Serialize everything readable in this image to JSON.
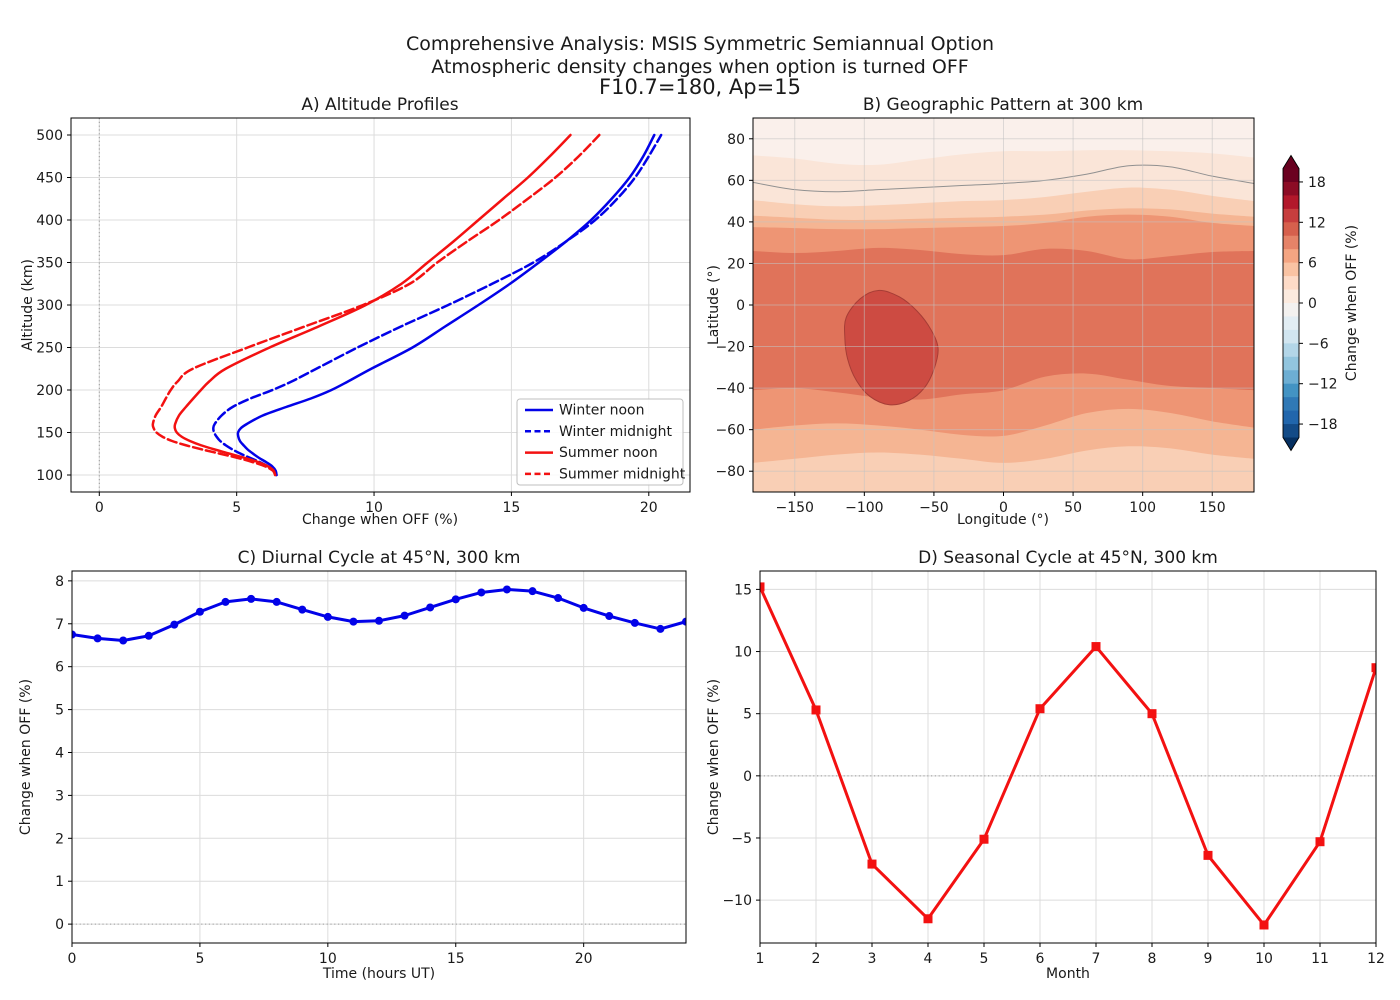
{
  "figure": {
    "suptitle_line1": "Comprehensive Analysis: MSIS Symmetric Semiannual Option",
    "suptitle_line2": "Atmospheric density changes when option is turned OFF",
    "suptitle_line3": "F10.7=180, Ap=15",
    "background": "#ffffff",
    "text_color": "#1a1a1a"
  },
  "colors": {
    "blue": "#0202e8",
    "red": "#f31111",
    "grid": "#dcdcdc",
    "grid_on_map": "#c3c3c3",
    "ref_line": "#999999",
    "spine": "#000000",
    "legend_border": "#bfbfbf"
  },
  "chart_data": [
    {
      "id": "A",
      "type": "line",
      "title": "A) Altitude Profiles",
      "xlabel": "Change when OFF (%)",
      "ylabel": "Altitude (km)",
      "xlim": [
        -1.03,
        21.5
      ],
      "ylim": [
        80,
        520
      ],
      "xticks": [
        0,
        5,
        10,
        15,
        20
      ],
      "yticks": [
        100,
        150,
        200,
        250,
        300,
        350,
        400,
        450,
        500
      ],
      "grid": true,
      "vline_x": 0,
      "legend_position": "lower right",
      "altitudes_km": [
        100,
        105,
        110,
        115,
        120,
        125,
        130,
        135,
        140,
        145,
        150,
        155,
        160,
        170,
        180,
        190,
        200,
        210,
        225,
        250,
        275,
        300,
        325,
        350,
        375,
        400,
        425,
        450,
        475,
        500
      ],
      "series": [
        {
          "name": "Winter noon",
          "color": "#0202e8",
          "style": "solid",
          "values": [
            6.45,
            6.42,
            6.3,
            6.08,
            5.82,
            5.6,
            5.4,
            5.25,
            5.12,
            5.06,
            5.05,
            5.15,
            5.37,
            5.95,
            6.8,
            7.7,
            8.45,
            9.05,
            9.9,
            11.4,
            12.6,
            13.8,
            14.95,
            16.0,
            17.0,
            17.9,
            18.65,
            19.3,
            19.8,
            20.2
          ]
        },
        {
          "name": "Winter midnight",
          "color": "#0202e8",
          "style": "dashed",
          "values": [
            6.45,
            6.38,
            6.15,
            5.85,
            5.5,
            5.15,
            4.85,
            4.6,
            4.4,
            4.27,
            4.18,
            4.15,
            4.2,
            4.45,
            4.85,
            5.5,
            6.3,
            7.0,
            7.9,
            9.4,
            11.0,
            12.7,
            14.3,
            15.8,
            17.0,
            18.05,
            18.85,
            19.5,
            20.0,
            20.45
          ]
        },
        {
          "name": "Summer noon",
          "color": "#f31111",
          "style": "solid",
          "values": [
            6.4,
            6.35,
            6.15,
            5.8,
            5.3,
            4.75,
            4.2,
            3.7,
            3.3,
            3.0,
            2.82,
            2.75,
            2.76,
            2.9,
            3.15,
            3.42,
            3.7,
            4.0,
            4.6,
            6.2,
            8.0,
            9.7,
            11.0,
            11.95,
            12.9,
            13.8,
            14.7,
            15.6,
            16.4,
            17.15
          ]
        },
        {
          "name": "Summer midnight",
          "color": "#f31111",
          "style": "dashed",
          "values": [
            6.4,
            6.32,
            6.05,
            5.6,
            5.05,
            4.4,
            3.75,
            3.15,
            2.65,
            2.3,
            2.08,
            1.98,
            1.95,
            2.05,
            2.25,
            2.42,
            2.6,
            2.85,
            3.4,
            5.4,
            7.5,
            9.6,
            11.3,
            12.3,
            13.4,
            14.55,
            15.6,
            16.6,
            17.45,
            18.2
          ]
        }
      ]
    },
    {
      "id": "B",
      "type": "contour",
      "title": "B) Geographic Pattern at 300 km",
      "xlabel": "Longitude (°)",
      "ylabel": "Latitude (°)",
      "xlim": [
        -180,
        180
      ],
      "ylim": [
        -90,
        90
      ],
      "xticks": [
        -150,
        -100,
        -50,
        0,
        50,
        100,
        150
      ],
      "yticks": [
        -80,
        -60,
        -40,
        -20,
        0,
        20,
        40,
        60,
        80
      ],
      "grid": true,
      "level_step": 2,
      "lons": [
        -180,
        -150,
        -120,
        -90,
        -60,
        -30,
        0,
        30,
        60,
        90,
        120,
        150,
        180
      ],
      "base_band": {
        "range": "0-2 %",
        "color": "#faf0eb"
      },
      "fill_steps": [
        {
          "level": 2,
          "range": "2-4 %",
          "color": "#fae5d8",
          "lats": [
            72,
            70.5,
            68,
            67.5,
            70,
            72.5,
            74,
            74,
            74.5,
            74.5,
            74,
            73,
            71
          ]
        },
        {
          "level": 4,
          "range": "4-6 %",
          "color": "#f9cfb5",
          "lats": [
            50.5,
            48.5,
            47.5,
            48,
            49,
            50,
            50.5,
            52,
            54.5,
            56.5,
            55.5,
            52.5,
            50
          ]
        },
        {
          "level": 6,
          "range": "6-8 %",
          "color": "#f5b593",
          "lats": [
            43,
            42,
            41,
            41,
            41.5,
            42,
            42.5,
            43.5,
            45.5,
            46.5,
            46,
            44,
            42.5
          ]
        },
        {
          "level": 8,
          "range": "8-10 %",
          "color": "#ee9574",
          "lats": [
            37.5,
            37,
            36.5,
            36.5,
            37,
            37.5,
            38,
            39.5,
            42.5,
            43.5,
            42.5,
            39.5,
            38
          ]
        },
        {
          "level": 10,
          "range": "10-12 %",
          "color": "#e0735a",
          "lats": [
            26,
            25,
            26,
            27.5,
            26.5,
            24.5,
            24,
            27,
            26,
            22,
            23.5,
            25.5,
            26
          ]
        },
        {
          "level": 10,
          "range": "8-10 %",
          "color": "#ee9574",
          "lats": [
            -41,
            -40,
            -42,
            -44.5,
            -45.5,
            -43,
            -41,
            -34.5,
            -33,
            -36,
            -39,
            -40,
            -41
          ]
        },
        {
          "level": 8,
          "range": "6-8 %",
          "color": "#f5b593",
          "lats": [
            -60,
            -58,
            -57,
            -58,
            -60,
            -62.5,
            -63,
            -58,
            -52,
            -50,
            -52,
            -56,
            -59
          ]
        },
        {
          "level": 6,
          "range": "4-6 %",
          "color": "#f9cfb5",
          "lats": [
            -76,
            -74,
            -72,
            -71,
            -72,
            -74,
            -76,
            -74,
            -70,
            -68,
            -69,
            -72,
            -74
          ]
        }
      ],
      "blob": {
        "range": "12-14 %",
        "color": "#cd4b42",
        "edge_color": "#a63d36",
        "center": [
          -80,
          -20
        ],
        "points": [
          [
            -113,
            -6
          ],
          [
            -103,
            3
          ],
          [
            -90,
            7
          ],
          [
            -75,
            4
          ],
          [
            -62,
            -3
          ],
          [
            -52,
            -12
          ],
          [
            -47,
            -21
          ],
          [
            -50,
            -31
          ],
          [
            -57,
            -40
          ],
          [
            -68,
            -46
          ],
          [
            -82,
            -48
          ],
          [
            -96,
            -44
          ],
          [
            -106,
            -36
          ],
          [
            -112,
            -26
          ],
          [
            -114,
            -16
          ]
        ]
      },
      "contour_line": {
        "color": "#909090",
        "lats": [
          59,
          55.5,
          54.5,
          55.5,
          56.5,
          57.5,
          58.5,
          60,
          63,
          67,
          66.5,
          62,
          58.5
        ]
      },
      "colorbar": {
        "label": "Change when OFF (%)",
        "vmin": -20,
        "vmax": 20,
        "ticks": [
          18,
          12,
          6,
          0,
          -6,
          -12,
          -18
        ],
        "cell_colors_top_to_bottom": [
          "#6b0120",
          "#8c0c25",
          "#b2182b",
          "#c73e3e",
          "#d6604d",
          "#e58368",
          "#f4a582",
          "#f9c3a3",
          "#fddbc7",
          "#fbeade",
          "#f3f1ef",
          "#e2edf3",
          "#d1e5f0",
          "#b3d6e8",
          "#92c5de",
          "#6daed3",
          "#4393c3",
          "#3079b6",
          "#2166ac",
          "#134b87"
        ],
        "over_color": "#67001f",
        "under_color": "#053061"
      }
    },
    {
      "id": "C",
      "type": "line",
      "title": "C) Diurnal Cycle at 45°N, 300 km",
      "xlabel": "Time (hours UT)",
      "ylabel": "Change when OFF (%)",
      "xlim": [
        0,
        24
      ],
      "ylim": [
        -0.44,
        8.23
      ],
      "xticks": [
        0,
        5,
        10,
        15,
        20
      ],
      "yticks": [
        0,
        1,
        2,
        3,
        4,
        5,
        6,
        7,
        8
      ],
      "grid": true,
      "zero_line": true,
      "marker": "circle",
      "color": "#0202e8",
      "x": [
        0,
        1,
        2,
        3,
        4,
        5,
        6,
        7,
        8,
        9,
        10,
        11,
        12,
        13,
        14,
        15,
        16,
        17,
        18,
        19,
        20,
        21,
        22,
        23,
        24
      ],
      "values": [
        6.75,
        6.66,
        6.61,
        6.72,
        6.98,
        7.28,
        7.51,
        7.58,
        7.51,
        7.33,
        7.16,
        7.05,
        7.07,
        7.19,
        7.38,
        7.57,
        7.73,
        7.8,
        7.76,
        7.6,
        7.37,
        7.18,
        7.02,
        6.88,
        7.05
      ]
    },
    {
      "id": "D",
      "type": "line",
      "title": "D) Seasonal Cycle at 45°N, 300 km",
      "xlabel": "Month",
      "ylabel": "Change when OFF (%)",
      "xlim": [
        1,
        12
      ],
      "ylim": [
        -13.45,
        16.48
      ],
      "xticks": [
        1,
        2,
        3,
        4,
        5,
        6,
        7,
        8,
        9,
        10,
        11,
        12
      ],
      "yticks": [
        -10,
        -5,
        0,
        5,
        10,
        15
      ],
      "grid": true,
      "zero_line": true,
      "marker": "square",
      "color": "#f31111",
      "x": [
        1,
        2,
        3,
        4,
        5,
        6,
        7,
        8,
        9,
        10,
        11,
        12
      ],
      "values": [
        15.2,
        5.3,
        -7.1,
        -11.5,
        -5.1,
        5.4,
        10.4,
        5.0,
        -6.4,
        -12.0,
        -5.3,
        8.7
      ]
    }
  ]
}
